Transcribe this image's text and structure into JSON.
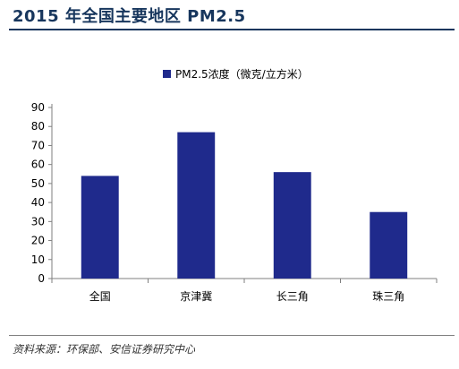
{
  "header": {
    "title": "2015 年全国主要地区 PM2.5"
  },
  "footer": {
    "source": "资料来源：环保部、安信证券研究中心"
  },
  "colors": {
    "title": "#17365d",
    "bar": "#1f2a8c",
    "axis": "#7f7f7f",
    "text": "#000000"
  },
  "chart_data": {
    "type": "bar",
    "title": "",
    "categories": [
      "全国",
      "京津冀",
      "长三角",
      "珠三角"
    ],
    "series": [
      {
        "name": "PM2.5浓度（微克/立方米）",
        "values": [
          54,
          77,
          56,
          35
        ]
      }
    ],
    "yticks": [
      "0",
      "10",
      "20",
      "30",
      "40",
      "50",
      "60",
      "70",
      "80",
      "90"
    ],
    "ylim": [
      0,
      90
    ],
    "xlabel": "",
    "ylabel": "",
    "grid": false,
    "legend": "top-center"
  }
}
